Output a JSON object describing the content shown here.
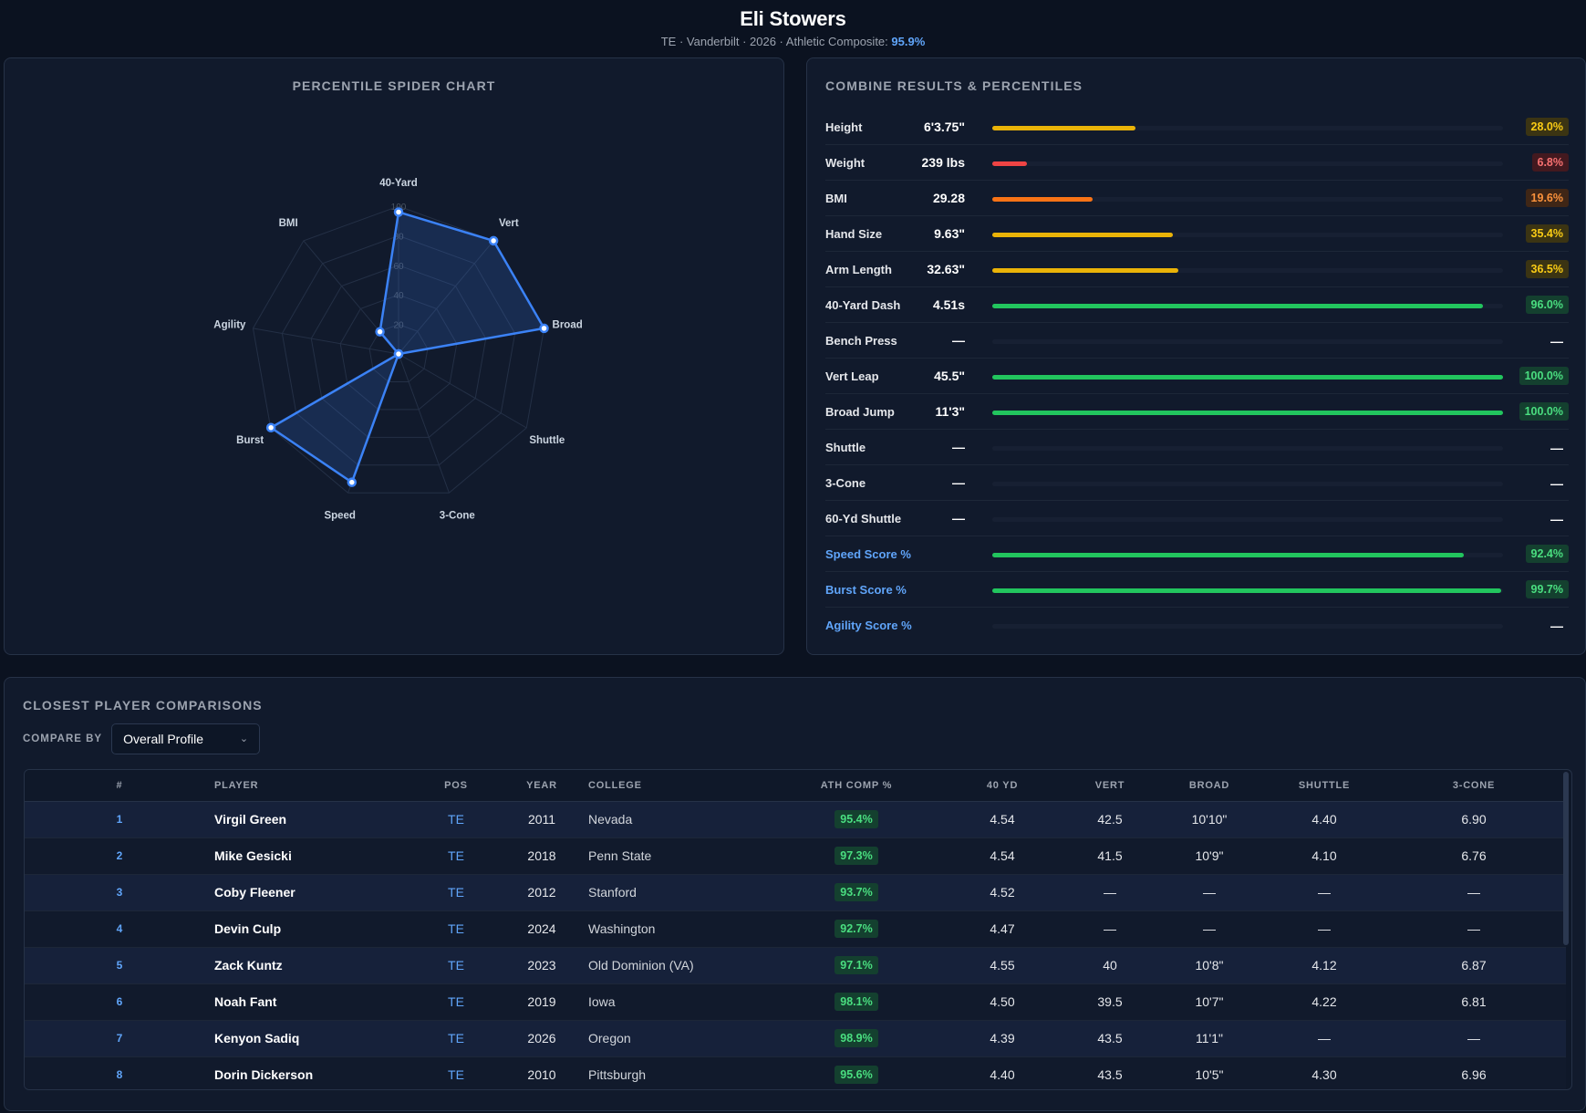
{
  "header": {
    "player_name": "Eli Stowers",
    "subtitle_prefix": "TE · Vanderbilt · 2026 · Athletic Composite: ",
    "athletic_composite": "95.9%"
  },
  "spider": {
    "title": "Percentile Spider Chart",
    "scale_labels": [
      "20",
      "40",
      "60",
      "80",
      "100"
    ],
    "chart_data": {
      "type": "radar",
      "axes": [
        "40-Yard",
        "Vert",
        "Broad",
        "Shuttle",
        "3-Cone",
        "Speed",
        "Burst",
        "Agility",
        "BMI"
      ],
      "values": [
        96.0,
        100.0,
        100.0,
        0,
        0,
        92.4,
        99.7,
        0,
        19.6
      ],
      "rlim": [
        0,
        100
      ],
      "fill_color": "#3b82f6"
    }
  },
  "results": {
    "title": "Combine Results & Percentiles",
    "rows": [
      {
        "label": "Height",
        "value": "6'3.75\"",
        "pct": 28.0,
        "pct_text": "28.0%",
        "derived": false
      },
      {
        "label": "Weight",
        "value": "239 lbs",
        "pct": 6.8,
        "pct_text": "6.8%",
        "derived": false
      },
      {
        "label": "BMI",
        "value": "29.28",
        "pct": 19.6,
        "pct_text": "19.6%",
        "derived": false
      },
      {
        "label": "Hand Size",
        "value": "9.63\"",
        "pct": 35.4,
        "pct_text": "35.4%",
        "derived": false
      },
      {
        "label": "Arm Length",
        "value": "32.63\"",
        "pct": 36.5,
        "pct_text": "36.5%",
        "derived": false
      },
      {
        "label": "40-Yard Dash",
        "value": "4.51s",
        "pct": 96.0,
        "pct_text": "96.0%",
        "derived": false
      },
      {
        "label": "Bench Press",
        "value": "—",
        "pct": null,
        "pct_text": "—",
        "derived": false
      },
      {
        "label": "Vert Leap",
        "value": "45.5\"",
        "pct": 100.0,
        "pct_text": "100.0%",
        "derived": false
      },
      {
        "label": "Broad Jump",
        "value": "11'3\"",
        "pct": 100.0,
        "pct_text": "100.0%",
        "derived": false
      },
      {
        "label": "Shuttle",
        "value": "—",
        "pct": null,
        "pct_text": "—",
        "derived": false
      },
      {
        "label": "3-Cone",
        "value": "—",
        "pct": null,
        "pct_text": "—",
        "derived": false
      },
      {
        "label": "60-Yd Shuttle",
        "value": "—",
        "pct": null,
        "pct_text": "—",
        "derived": false
      },
      {
        "label": "Speed Score %",
        "value": "",
        "pct": 92.4,
        "pct_text": "92.4%",
        "derived": true
      },
      {
        "label": "Burst Score %",
        "value": "",
        "pct": 99.7,
        "pct_text": "99.7%",
        "derived": true
      },
      {
        "label": "Agility Score %",
        "value": "",
        "pct": null,
        "pct_text": "—",
        "derived": true
      }
    ]
  },
  "comparisons": {
    "title": "Closest Player Comparisons",
    "compare_by_label": "COMPARE BY",
    "compare_by_value": "Overall Profile",
    "columns": [
      "#",
      "PLAYER",
      "POS",
      "YEAR",
      "COLLEGE",
      "ATH COMP %",
      "40 YD",
      "VERT",
      "BROAD",
      "SHUTTLE",
      "3-CONE"
    ],
    "rows": [
      {
        "rank": "1",
        "player": "Virgil Green",
        "pos": "TE",
        "year": "2011",
        "college": "Nevada",
        "ath": "95.4%",
        "forty": "4.54",
        "vert": "42.5",
        "broad": "10'10\"",
        "shuttle": "4.40",
        "cone": "6.90"
      },
      {
        "rank": "2",
        "player": "Mike Gesicki",
        "pos": "TE",
        "year": "2018",
        "college": "Penn State",
        "ath": "97.3%",
        "forty": "4.54",
        "vert": "41.5",
        "broad": "10'9\"",
        "shuttle": "4.10",
        "cone": "6.76"
      },
      {
        "rank": "3",
        "player": "Coby Fleener",
        "pos": "TE",
        "year": "2012",
        "college": "Stanford",
        "ath": "93.7%",
        "forty": "4.52",
        "vert": "—",
        "broad": "—",
        "shuttle": "—",
        "cone": "—"
      },
      {
        "rank": "4",
        "player": "Devin Culp",
        "pos": "TE",
        "year": "2024",
        "college": "Washington",
        "ath": "92.7%",
        "forty": "4.47",
        "vert": "—",
        "broad": "—",
        "shuttle": "—",
        "cone": "—"
      },
      {
        "rank": "5",
        "player": "Zack Kuntz",
        "pos": "TE",
        "year": "2023",
        "college": "Old Dominion (VA)",
        "ath": "97.1%",
        "forty": "4.55",
        "vert": "40",
        "broad": "10'8\"",
        "shuttle": "4.12",
        "cone": "6.87"
      },
      {
        "rank": "6",
        "player": "Noah Fant",
        "pos": "TE",
        "year": "2019",
        "college": "Iowa",
        "ath": "98.1%",
        "forty": "4.50",
        "vert": "39.5",
        "broad": "10'7\"",
        "shuttle": "4.22",
        "cone": "6.81"
      },
      {
        "rank": "7",
        "player": "Kenyon Sadiq",
        "pos": "TE",
        "year": "2026",
        "college": "Oregon",
        "ath": "98.9%",
        "forty": "4.39",
        "vert": "43.5",
        "broad": "11'1\"",
        "shuttle": "—",
        "cone": "—"
      },
      {
        "rank": "8",
        "player": "Dorin Dickerson",
        "pos": "TE",
        "year": "2010",
        "college": "Pittsburgh",
        "ath": "95.6%",
        "forty": "4.40",
        "vert": "43.5",
        "broad": "10'5\"",
        "shuttle": "4.30",
        "cone": "6.96"
      }
    ]
  },
  "colors": {
    "green": "#22c55e",
    "yellow": "#eab308",
    "orange": "#f97316",
    "red": "#ef4444",
    "accent": "#60a5fa"
  }
}
